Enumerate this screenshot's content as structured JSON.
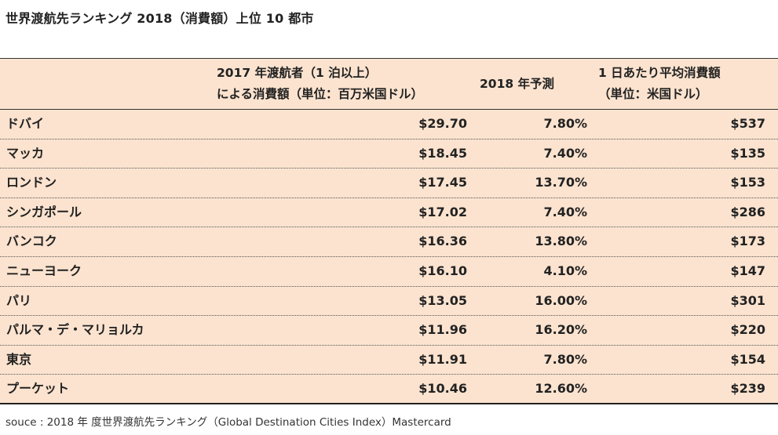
{
  "title": "世界渡航先ランキング 2018（消費額）上位 10 都市",
  "header": {
    "col_spend_line1": "2017 年渡航者（1 泊以上）",
    "col_spend_line2": "による消費額（単位：百万米国ドル）",
    "col_forecast": "2018 年予測",
    "col_daily_line1": "1 日あたり平均消費額",
    "col_daily_line2": "（単位：米国ドル）"
  },
  "rows": [
    {
      "city": "ドバイ",
      "spend": "$29.70",
      "forecast": "7.80%",
      "daily": "$537"
    },
    {
      "city": "マッカ",
      "spend": "$18.45",
      "forecast": "7.40%",
      "daily": "$135"
    },
    {
      "city": "ロンドン",
      "spend": "$17.45",
      "forecast": "13.70%",
      "daily": "$153"
    },
    {
      "city": "シンガポール",
      "spend": "$17.02",
      "forecast": "7.40%",
      "daily": "$286"
    },
    {
      "city": "バンコク",
      "spend": "$16.36",
      "forecast": "13.80%",
      "daily": "$173"
    },
    {
      "city": "ニューヨーク",
      "spend": "$16.10",
      "forecast": "4.10%",
      "daily": "$147"
    },
    {
      "city": "パリ",
      "spend": "$13.05",
      "forecast": "16.00%",
      "daily": "$301"
    },
    {
      "city": "パルマ・デ・マリョルカ",
      "spend": "$11.96",
      "forecast": "16.20%",
      "daily": "$220"
    },
    {
      "city": "東京",
      "spend": "$11.91",
      "forecast": "7.80%",
      "daily": "$154"
    },
    {
      "city": "プーケット",
      "spend": "$10.46",
      "forecast": "12.60%",
      "daily": "$239"
    }
  ],
  "source": "souce : 2018 年 度世界渡航先ランキング（Global Destination Cities Index）Mastercard",
  "colors": {
    "table_bg": "#fbe3cf",
    "rule": "#333333"
  }
}
